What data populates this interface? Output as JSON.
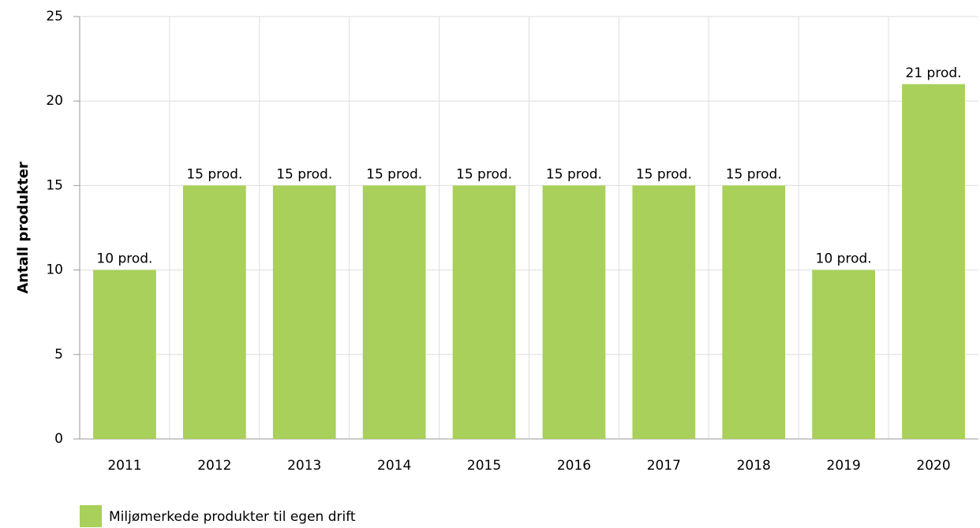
{
  "chart_data": {
    "type": "bar",
    "ylabel": "Antall produkter",
    "categories": [
      "2011",
      "2012",
      "2013",
      "2014",
      "2015",
      "2016",
      "2017",
      "2018",
      "2019",
      "2020"
    ],
    "series": [
      {
        "name": "Miljømerkede produkter til egen drift",
        "color": "#a8d05a",
        "values": [
          10,
          15,
          15,
          15,
          15,
          15,
          15,
          15,
          10,
          21
        ],
        "value_labels": [
          "10 prod.",
          "15 prod.",
          "15 prod.",
          "15 prod.",
          "15 prod.",
          "15 prod.",
          "15 prod.",
          "15 prod.",
          "10 prod.",
          "21 prod."
        ]
      }
    ],
    "ylim": [
      0,
      25
    ],
    "yticks": [
      0,
      5,
      10,
      15,
      20,
      25
    ],
    "grid": true,
    "legend": "bottom-left"
  }
}
